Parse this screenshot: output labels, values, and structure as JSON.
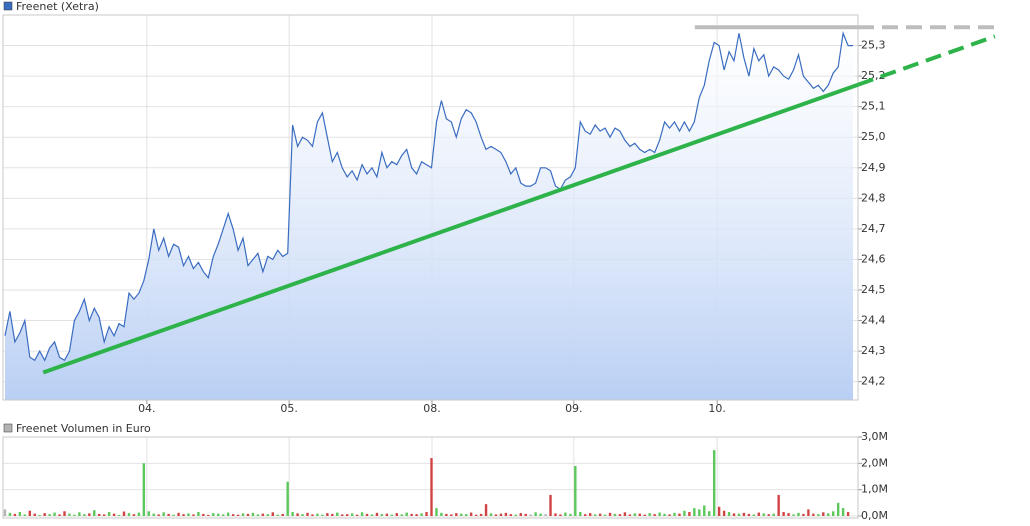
{
  "chart_data": [
    {
      "type": "area",
      "title": "Freenet (Xetra)",
      "color": "#3a6cc0",
      "fill_color": "#b9cff4",
      "grid": true,
      "values": [
        24.35,
        24.43,
        24.33,
        24.36,
        24.4,
        24.28,
        24.27,
        24.3,
        24.27,
        24.31,
        24.33,
        24.28,
        24.27,
        24.3,
        24.4,
        24.43,
        24.47,
        24.4,
        24.44,
        24.41,
        24.33,
        24.38,
        24.35,
        24.39,
        24.38,
        24.49,
        24.47,
        24.49,
        24.53,
        24.6,
        24.7,
        24.63,
        24.67,
        24.61,
        24.65,
        24.64,
        24.58,
        24.61,
        24.57,
        24.59,
        24.56,
        24.54,
        24.61,
        24.65,
        24.7,
        24.75,
        24.7,
        24.63,
        24.67,
        24.58,
        24.6,
        24.62,
        24.56,
        24.61,
        24.6,
        24.63,
        24.61,
        24.62,
        25.04,
        24.97,
        25.0,
        24.99,
        24.97,
        25.05,
        25.08,
        25.0,
        24.92,
        24.95,
        24.9,
        24.87,
        24.89,
        24.86,
        24.91,
        24.88,
        24.9,
        24.87,
        24.95,
        24.9,
        24.92,
        24.91,
        24.94,
        24.96,
        24.9,
        24.88,
        24.92,
        24.91,
        24.9,
        25.05,
        25.12,
        25.06,
        25.05,
        25.0,
        25.06,
        25.09,
        25.08,
        25.05,
        25.0,
        24.96,
        24.97,
        24.96,
        24.95,
        24.92,
        24.88,
        24.9,
        24.85,
        24.84,
        24.84,
        24.85,
        24.9,
        24.9,
        24.89,
        24.84,
        24.83,
        24.86,
        24.87,
        24.9,
        25.05,
        25.02,
        25.01,
        25.04,
        25.02,
        25.03,
        25.0,
        25.03,
        25.02,
        24.99,
        24.97,
        24.98,
        24.96,
        24.95,
        24.96,
        24.95,
        24.99,
        25.05,
        25.03,
        25.05,
        25.02,
        25.05,
        25.02,
        25.05,
        25.13,
        25.17,
        25.25,
        25.31,
        25.3,
        25.22,
        25.28,
        25.25,
        25.34,
        25.26,
        25.2,
        25.29,
        25.25,
        25.27,
        25.2,
        25.23,
        25.22,
        25.2,
        25.19,
        25.22,
        25.27,
        25.2,
        25.18,
        25.16,
        25.17,
        25.15,
        25.17,
        25.21,
        25.23,
        25.34,
        25.3,
        25.3
      ],
      "xlim": [
        -0.4,
        172
      ],
      "xticks": [
        {
          "value": 28.6,
          "label": "04."
        },
        {
          "value": 57.3,
          "label": "05."
        },
        {
          "value": 86.1,
          "label": "08."
        },
        {
          "value": 114.7,
          "label": "09."
        },
        {
          "value": 143.6,
          "label": "10."
        }
      ],
      "ylim": [
        24.14,
        25.4
      ],
      "yticks": [
        {
          "value": 24.2,
          "label": "24,2"
        },
        {
          "value": 24.3,
          "label": "24,3"
        },
        {
          "value": 24.4,
          "label": "24,4"
        },
        {
          "value": 24.5,
          "label": "24,5"
        },
        {
          "value": 24.6,
          "label": "24,6"
        },
        {
          "value": 24.7,
          "label": "24,7"
        },
        {
          "value": 24.8,
          "label": "24,8"
        },
        {
          "value": 24.9,
          "label": "24,9"
        },
        {
          "value": 25.0,
          "label": "25,0"
        },
        {
          "value": 25.1,
          "label": "25,1"
        },
        {
          "value": 25.2,
          "label": "25,2"
        },
        {
          "value": 25.3,
          "label": "25,3"
        }
      ],
      "trendlines": [
        {
          "color": "#2db34a",
          "x": [
            7.7,
            199.6
          ],
          "y": [
            24.23,
            25.33
          ]
        },
        {
          "color": "#bdbdbd",
          "x": [
            139.1,
            200.2
          ],
          "y": [
            25.36,
            25.36
          ]
        }
      ]
    },
    {
      "type": "bar",
      "title": "Freenet Volumen in Euro",
      "color": "#b4b4b4",
      "up_color": "#5cc85c",
      "down_color": "#d24444",
      "values": [
        250000,
        120000,
        80000,
        150000,
        60000,
        200000,
        90000,
        40000,
        110000,
        70000,
        130000,
        60000,
        180000,
        90000,
        50000,
        140000,
        70000,
        100000,
        220000,
        80000,
        60000,
        150000,
        90000,
        40000,
        170000,
        110000,
        70000,
        130000,
        2000000,
        180000,
        90000,
        60000,
        140000,
        80000,
        50000,
        120000,
        70000,
        100000,
        60000,
        150000,
        80000,
        40000,
        110000,
        90000,
        60000,
        130000,
        70000,
        50000,
        100000,
        80000,
        120000,
        60000,
        90000,
        70000,
        140000,
        50000,
        80000,
        1300000,
        150000,
        100000,
        70000,
        120000,
        60000,
        90000,
        50000,
        110000,
        80000,
        130000,
        60000,
        70000,
        100000,
        50000,
        140000,
        80000,
        60000,
        120000,
        70000,
        90000,
        50000,
        110000,
        60000,
        130000,
        80000,
        70000,
        100000,
        150000,
        2200000,
        300000,
        120000,
        80000,
        60000,
        110000,
        90000,
        70000,
        130000,
        50000,
        80000,
        450000,
        100000,
        60000,
        90000,
        120000,
        70000,
        50000,
        110000,
        80000,
        60000,
        140000,
        90000,
        70000,
        800000,
        100000,
        60000,
        130000,
        80000,
        1900000,
        150000,
        70000,
        110000,
        60000,
        90000,
        50000,
        120000,
        80000,
        70000,
        140000,
        60000,
        100000,
        90000,
        50000,
        110000,
        70000,
        130000,
        80000,
        60000,
        120000,
        90000,
        200000,
        150000,
        300000,
        250000,
        400000,
        180000,
        2500000,
        350000,
        200000,
        150000,
        100000,
        90000,
        120000,
        80000,
        60000,
        130000,
        100000,
        70000,
        90000,
        800000,
        150000,
        110000,
        60000,
        120000,
        80000,
        250000,
        90000,
        70000,
        140000,
        100000,
        180000,
        500000,
        300000,
        150000
      ],
      "ylim": [
        0,
        3000000
      ],
      "yticks": [
        {
          "value": 0,
          "label": "0,0M"
        },
        {
          "value": 1000000,
          "label": "1,0M"
        },
        {
          "value": 2000000,
          "label": "2,0M"
        },
        {
          "value": 3000000,
          "label": "3,0M"
        }
      ]
    }
  ]
}
